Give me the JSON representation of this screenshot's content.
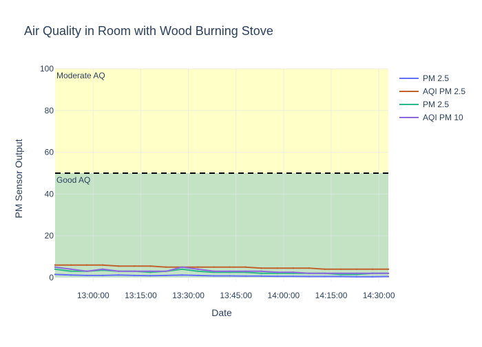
{
  "chart_data": {
    "type": "line",
    "title": "Air Quality in Room with Wood Burning Stove",
    "xlabel": "Date",
    "ylabel": "PM Sensor Output",
    "xlim": [
      "12:48:00",
      "14:33:00"
    ],
    "ylim": [
      -2,
      100
    ],
    "x_ticks": [
      "13:00:00",
      "13:15:00",
      "13:30:00",
      "13:45:00",
      "14:00:00",
      "14:15:00",
      "14:30:00"
    ],
    "y_ticks": [
      0,
      20,
      40,
      60,
      80,
      100
    ],
    "grid": true,
    "legend_position": "top-right",
    "bands": [
      {
        "label": "Moderate AQ",
        "from": 50,
        "to": 100,
        "color": "#ffffc8"
      },
      {
        "label": "Good AQ",
        "from": 0,
        "to": 50,
        "color": "#c4e3c4"
      }
    ],
    "threshold": {
      "value": 50,
      "style": "dashed",
      "color": "#000000"
    },
    "x": [
      "12:48:00",
      "12:53:00",
      "12:58:00",
      "13:03:00",
      "13:08:00",
      "13:13:00",
      "13:18:00",
      "13:23:00",
      "13:28:00",
      "13:33:00",
      "13:38:00",
      "13:43:00",
      "13:48:00",
      "13:53:00",
      "13:58:00",
      "14:03:00",
      "14:08:00",
      "14:13:00",
      "14:18:00",
      "14:23:00",
      "14:28:00",
      "14:33:00"
    ],
    "series": [
      {
        "name": "PM 2.5",
        "color": "#636efa",
        "values": [
          1.5,
          1.2,
          1.0,
          1.0,
          1.2,
          1.0,
          0.9,
          1.0,
          1.2,
          1.0,
          0.8,
          0.8,
          0.7,
          0.7,
          0.6,
          0.6,
          0.5,
          0.5,
          0.5,
          0.4,
          0.4,
          0.5
        ]
      },
      {
        "name": "AQI PM 2.5",
        "color": "#c1622d",
        "values": [
          6,
          6,
          6,
          6,
          5.5,
          5.5,
          5.5,
          5,
          5,
          5,
          5,
          5,
          5,
          4.5,
          4.5,
          4.5,
          4.5,
          4,
          4,
          4,
          4,
          4
        ]
      },
      {
        "name": "PM 2.5",
        "color": "#2cb98a",
        "values": [
          4,
          3,
          3,
          3.5,
          3,
          3,
          2.5,
          3,
          4,
          3,
          2.5,
          2.5,
          2.5,
          2,
          2,
          2,
          2,
          2,
          1.5,
          1.5,
          2,
          2
        ]
      },
      {
        "name": "AQI PM 10",
        "color": "#8d67e0",
        "values": [
          5,
          4,
          3,
          4,
          3,
          3,
          3,
          3,
          5,
          4,
          3,
          3,
          3,
          3,
          2.5,
          2.5,
          2,
          2,
          2,
          2,
          2,
          2
        ]
      }
    ]
  }
}
